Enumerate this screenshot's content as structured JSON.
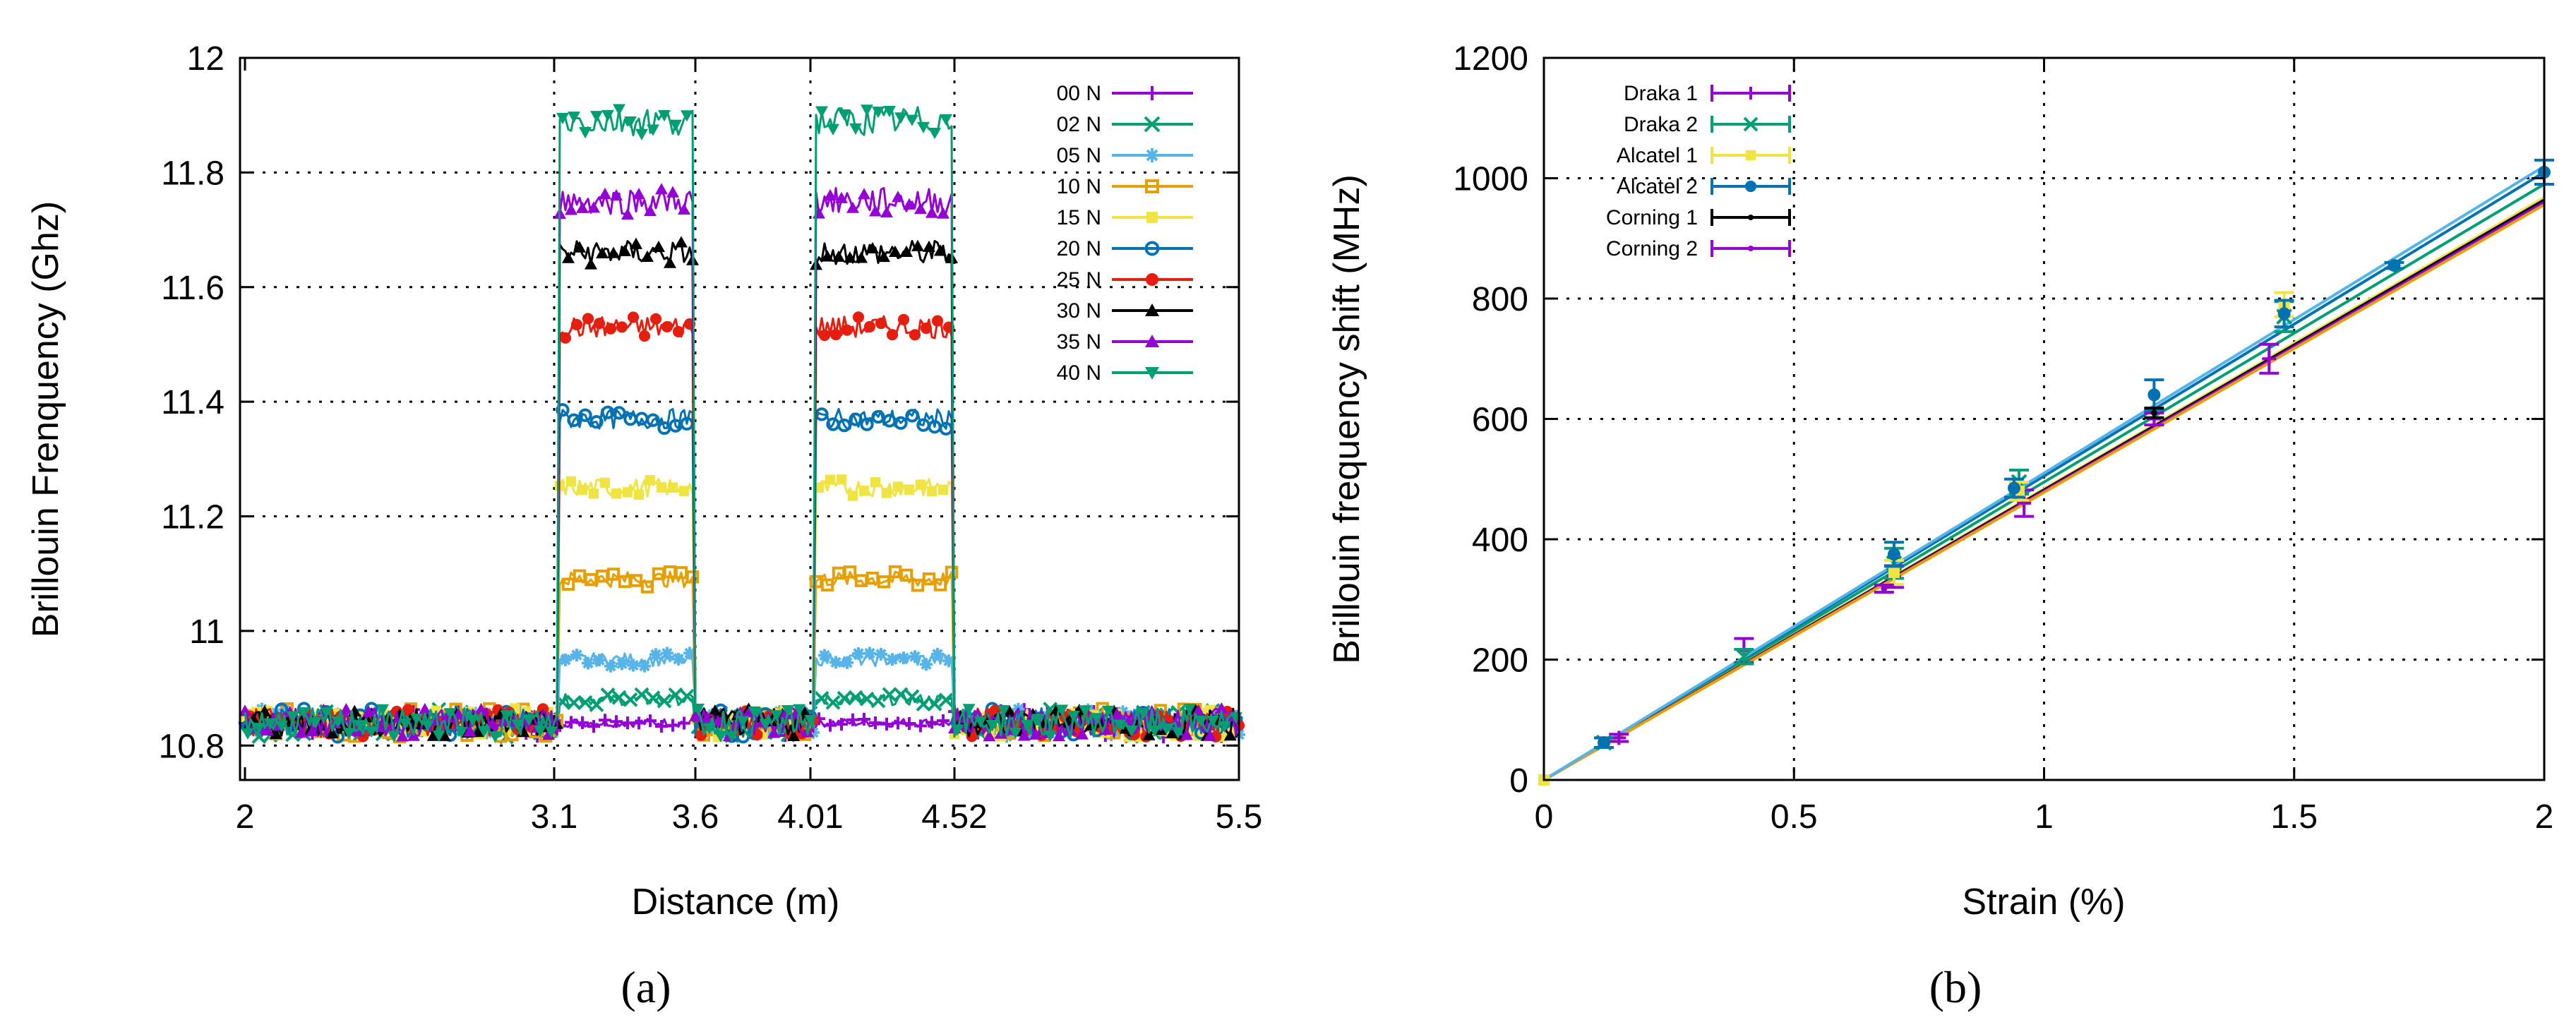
{
  "chart_data": [
    {
      "panel_label": "(a)",
      "type": "line",
      "xlabel": "Distance (m)",
      "ylabel": "Brillouin Frenquency (Ghz)",
      "xlim": [
        2,
        5.5
      ],
      "ylim": [
        10.74,
        12
      ],
      "x_ticks": [
        2,
        3.1,
        3.6,
        4.01,
        4.52,
        5.5
      ],
      "x_tick_labels": [
        "2",
        "3.1",
        "3.6",
        "4.01",
        "4.52",
        "5.5"
      ],
      "y_ticks": [
        10.8,
        11,
        11.2,
        11.4,
        11.6,
        11.8,
        12
      ],
      "y_tick_labels": [
        "10.8",
        "11",
        "11.2",
        "11.4",
        "11.6",
        "11.8",
        "12"
      ],
      "grid": true,
      "legend_position": "top-right",
      "baseline_ghz": 10.84,
      "strained_segments_m": [
        [
          3.1,
          3.6
        ],
        [
          4.01,
          4.52
        ]
      ],
      "series": [
        {
          "name": "00 N",
          "color": "#9400d3",
          "marker": "plus",
          "plateau_ghz": 10.84
        },
        {
          "name": "02 N",
          "color": "#009e73",
          "marker": "cross",
          "plateau_ghz": 10.88
        },
        {
          "name": "05 N",
          "color": "#56b4e9",
          "marker": "asterisk",
          "plateau_ghz": 10.95
        },
        {
          "name": "10 N",
          "color": "#e69f00",
          "marker": "square-open",
          "plateau_ghz": 11.09
        },
        {
          "name": "15 N",
          "color": "#f0e442",
          "marker": "square-filled",
          "plateau_ghz": 11.25
        },
        {
          "name": "20 N",
          "color": "#0072b2",
          "marker": "circle-open",
          "plateau_ghz": 11.37
        },
        {
          "name": "25 N",
          "color": "#e51e10",
          "marker": "circle-filled",
          "plateau_ghz": 11.53
        },
        {
          "name": "30 N",
          "color": "#000000",
          "marker": "triangle-filled",
          "plateau_ghz": 11.66
        },
        {
          "name": "35 N",
          "color": "#9400d3",
          "marker": "triangle-filled",
          "plateau_ghz": 11.75
        },
        {
          "name": "40 N",
          "color": "#009e73",
          "marker": "triangle-down-filled",
          "plateau_ghz": 11.89
        }
      ]
    },
    {
      "panel_label": "(b)",
      "type": "scatter",
      "xlabel": "Strain (%)",
      "ylabel": "Brillouin frequency shift (MHz)",
      "xlim": [
        0,
        2
      ],
      "ylim": [
        0,
        1200
      ],
      "x_ticks": [
        0,
        0.5,
        1,
        1.5,
        2
      ],
      "x_tick_labels": [
        "0",
        "0.5",
        "1",
        "1.5",
        "2"
      ],
      "y_ticks": [
        0,
        200,
        400,
        600,
        800,
        1000,
        1200
      ],
      "y_tick_labels": [
        "0",
        "200",
        "400",
        "600",
        "800",
        "1000",
        "1200"
      ],
      "grid": true,
      "legend_position": "top-left",
      "series": [
        {
          "name": "Draka 1",
          "color": "#9400d3",
          "marker": "plus",
          "fit_slope": 480,
          "points": [
            {
              "x": 0.15,
              "y": 70,
              "err": 6
            },
            {
              "x": 0.4,
              "y": 215,
              "err": 20
            },
            {
              "x": 0.7,
              "y": 338,
              "err": 18
            },
            {
              "x": 0.96,
              "y": 460,
              "err": 22
            },
            {
              "x": 1.22,
              "y": 600,
              "err": 10
            },
            {
              "x": 1.45,
              "y": 700,
              "err": 24
            }
          ]
        },
        {
          "name": "Draka 2",
          "color": "#009e73",
          "marker": "cross",
          "fit_slope": 495,
          "points": [
            {
              "x": 0.12,
              "y": 62,
              "err": 8
            },
            {
              "x": 0.4,
              "y": 205,
              "err": 12
            },
            {
              "x": 0.7,
              "y": 360,
              "err": 25
            },
            {
              "x": 0.95,
              "y": 495,
              "err": 20
            },
            {
              "x": 1.48,
              "y": 770,
              "err": 25
            }
          ]
        },
        {
          "name": "Alcatel 1",
          "color": "#f0e442",
          "marker": "square-filled",
          "fit_slope": 484,
          "points": [
            {
              "x": 0,
              "y": 0,
              "err": 0
            },
            {
              "x": 0.7,
              "y": 345,
              "err": 20
            },
            {
              "x": 0.95,
              "y": 480,
              "err": 15
            },
            {
              "x": 1.48,
              "y": 790,
              "err": 20
            }
          ]
        },
        {
          "name": "Alcatel 2",
          "color": "#0072b2",
          "marker": "circle-filled",
          "fit_slope": 505,
          "points": [
            {
              "x": 0.12,
              "y": 62,
              "err": 8
            },
            {
              "x": 0.7,
              "y": 375,
              "err": 20
            },
            {
              "x": 0.94,
              "y": 485,
              "err": 15
            },
            {
              "x": 1.22,
              "y": 640,
              "err": 25
            },
            {
              "x": 1.48,
              "y": 775,
              "err": 22
            },
            {
              "x": 1.7,
              "y": 855,
              "err": 5
            },
            {
              "x": 2,
              "y": 1010,
              "err": 20
            }
          ]
        },
        {
          "name": "Corning 1",
          "color": "#000000",
          "marker": "dot",
          "fit_slope": 482,
          "points": [
            {
              "x": 1.22,
              "y": 610,
              "err": 8
            }
          ]
        },
        {
          "name": "Corning 2",
          "color": "#9400d3",
          "marker": "dot",
          "fit_slope": 480,
          "points": [
            {
              "x": 0.68,
              "y": 318,
              "err": 6
            }
          ]
        }
      ],
      "extra_fit_lines": [
        {
          "color": "#e69f00",
          "slope": 478
        },
        {
          "color": "#56b4e9",
          "slope": 510
        }
      ]
    }
  ]
}
